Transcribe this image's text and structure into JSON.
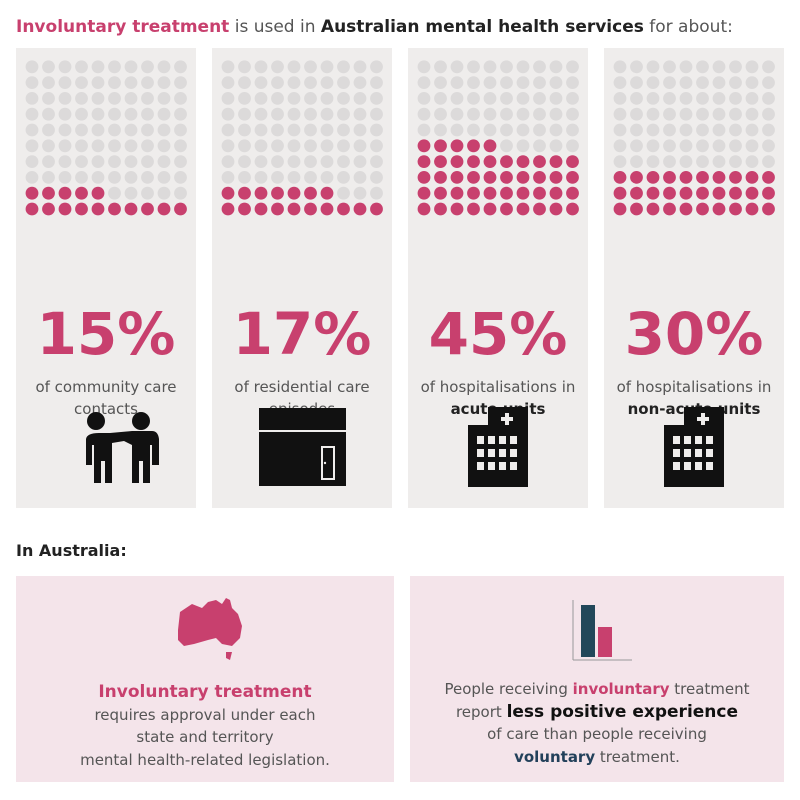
{
  "header": {
    "segments": [
      {
        "text": "Involuntary treatment",
        "style": "accent"
      },
      {
        "text": "is used in",
        "style": "plain"
      },
      {
        "text": "Australian mental health services",
        "style": "strong"
      },
      {
        "text": "for about:",
        "style": "plain"
      }
    ]
  },
  "cards": [
    {
      "value": 15,
      "value_label": "15%",
      "icon": "people",
      "description": [
        [
          {
            "text": "of community care",
            "style": "plain"
          }
        ],
        [
          {
            "text": "contacts",
            "style": "plain"
          }
        ]
      ]
    },
    {
      "value": 17,
      "value_label": "17%",
      "icon": "house",
      "description": [
        [
          {
            "text": "of residential care",
            "style": "plain"
          }
        ],
        [
          {
            "text": "episodes",
            "style": "plain"
          }
        ]
      ]
    },
    {
      "value": 45,
      "value_label": "45%",
      "icon": "hospital",
      "description": [
        [
          {
            "text": "of hospitalisations in",
            "style": "plain"
          }
        ],
        [
          {
            "text": "acute units",
            "style": "strong"
          }
        ]
      ]
    },
    {
      "value": 30,
      "value_label": "30%",
      "icon": "hospital",
      "description": [
        [
          {
            "text": "of hospitalisations in",
            "style": "plain"
          }
        ],
        [
          {
            "text": "non-acute units",
            "style": "strong"
          }
        ]
      ]
    }
  ],
  "section_title": "In Australia:",
  "panels": [
    {
      "icon": "map",
      "lines": [
        [
          {
            "text": "Involuntary treatment",
            "style": "accent-large"
          }
        ],
        [
          {
            "text": "requires approval under each",
            "style": "plain"
          }
        ],
        [
          {
            "text": "state and territory",
            "style": "plain"
          }
        ],
        [
          {
            "text": "mental health-related legislation.",
            "style": "plain"
          }
        ]
      ]
    },
    {
      "icon": "bars",
      "lines": [
        [
          {
            "text": "People receiving",
            "style": "plain"
          },
          {
            "text": "involuntary",
            "style": "accent"
          },
          {
            "text": "treatment",
            "style": "plain"
          }
        ],
        [
          {
            "text": "report",
            "style": "plain"
          },
          {
            "text": "less positive experience",
            "style": "strong-large"
          }
        ],
        [
          {
            "text": "of care than people receiving",
            "style": "plain"
          }
        ],
        [
          {
            "text": "voluntary",
            "style": "navy"
          },
          {
            "text": "treatment.",
            "style": "plain"
          }
        ]
      ]
    }
  ]
}
